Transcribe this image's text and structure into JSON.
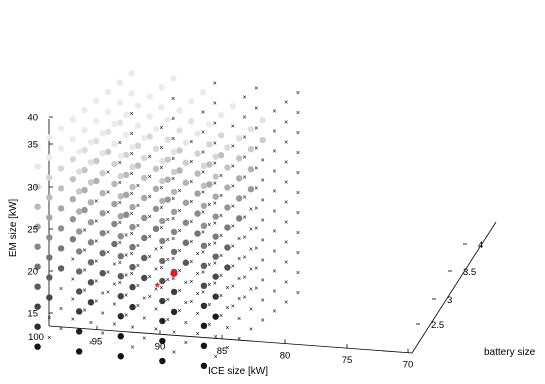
{
  "chart_data": {
    "type": "scatter",
    "projection": "3d",
    "axes": {
      "x": {
        "label": "ICE size [kW]",
        "ticks": [
          100,
          95,
          90,
          85,
          80,
          75,
          70
        ]
      },
      "y": {
        "label": "EM size [kW]",
        "ticks": [
          15,
          20,
          25,
          30,
          35,
          40
        ]
      },
      "z": {
        "label": "battery size",
        "ticks": [
          2.5,
          3,
          3.5,
          4
        ]
      }
    },
    "grid": false,
    "legend": "none",
    "marker_legend": {
      "feasible": "filled circle, gray level indicates value",
      "infeasible": "x",
      "optimum": "red filled circle",
      "reference": "red asterisk"
    },
    "colors": {
      "feasible_dark": "#000000",
      "feasible_light": "#eeeeee",
      "infeasible": "#000000",
      "highlight": "#e8191b"
    },
    "layers": [
      {
        "ice_kw": 95,
        "em_kw_min": 15,
        "em_kw_max": 40,
        "battery_min": 2.2,
        "battery_max": 4.2
      },
      {
        "ice_kw": 88,
        "em_kw_min": 15,
        "em_kw_max": 40,
        "battery_min": 2.2,
        "battery_max": 4.2
      },
      {
        "ice_kw": 81,
        "em_kw_min": 15,
        "em_kw_max": 40,
        "battery_min": 2.2,
        "battery_max": 4.2
      },
      {
        "ice_kw": 74,
        "em_kw_min": 15,
        "em_kw_max": 40,
        "battery_min": 2.2,
        "battery_max": 4.2
      },
      {
        "ice_kw": 67,
        "em_kw_min": 15,
        "em_kw_max": 40,
        "battery_min": 2.2,
        "battery_max": 4.2
      }
    ],
    "optimum_point": {
      "ice_kw": 76,
      "em_kw": 23.5,
      "battery": 2.7
    },
    "reference_point": {
      "ice_kw": 78,
      "em_kw": 22,
      "battery": 2.6
    }
  }
}
